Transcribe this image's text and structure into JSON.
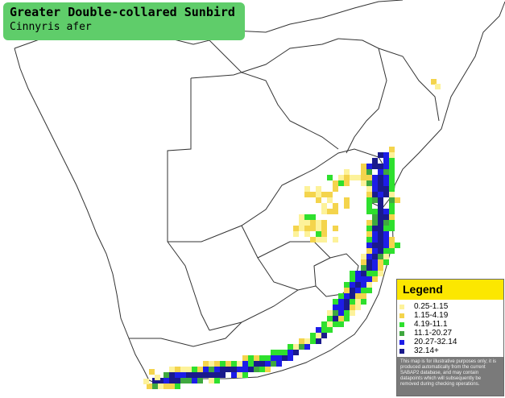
{
  "species": {
    "common_name": "Greater Double-collared Sunbird",
    "scientific_name": "Cinnyris afer"
  },
  "legend": {
    "title": "Legend",
    "items": [
      {
        "label": "0.25-1.15",
        "color": "#fdf29a"
      },
      {
        "label": "1.15-4.19",
        "color": "#f4d44c"
      },
      {
        "label": "4.19-11.1",
        "color": "#2ee02e"
      },
      {
        "label": "11.1-20.27",
        "color": "#3fa83f"
      },
      {
        "label": "20.27-32.14",
        "color": "#1d1de8"
      },
      {
        "label": "32.14+",
        "color": "#1a1a8c"
      }
    ],
    "disclaimer": "This map is for illustrative purposes only; it is produced automatically from the current SABAP2 database, and may contain datapoints which will subsequently be removed during checking operations."
  },
  "colors": {
    "title_bg": "#5fcd6a",
    "legend_header": "#fce700",
    "legend_panel": "#7a7a7a",
    "border_line": "#333333"
  }
}
